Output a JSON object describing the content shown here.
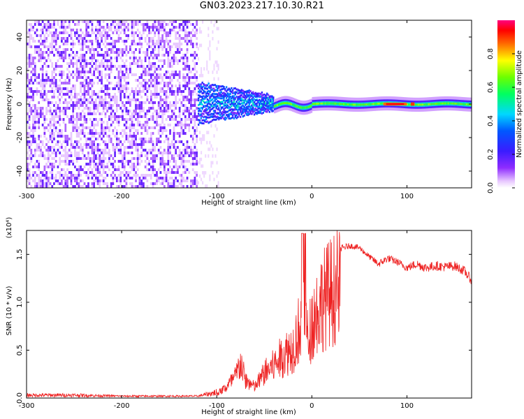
{
  "title": "GN03.2023.217.10.30.R21",
  "chart_data": [
    {
      "type": "heatmap",
      "xlabel": "Height of straight line (km)",
      "ylabel": "Frequency (Hz)",
      "xlim": [
        -300,
        168
      ],
      "ylim": [
        -50,
        50
      ],
      "xticks": [
        -300,
        -200,
        -100,
        0,
        100
      ],
      "yticks": [
        -40,
        -20,
        0,
        20,
        40
      ],
      "colorbar": {
        "label": "Normalized spectral amplitude",
        "range": [
          0.0,
          1.0
        ],
        "ticks": [
          "0.0",
          "0.2",
          "0.4",
          "0.6",
          "0.8"
        ],
        "colormap": "rainbow (white-violet-blue-cyan-green-yellow-red-magenta)"
      },
      "regions": [
        {
          "x_range": [
            -300,
            -120
          ],
          "freq_range": [
            -50,
            50
          ],
          "amplitude": 0.05
        },
        {
          "x_range": [
            -120,
            -40
          ],
          "freq_range": [
            -12,
            12
          ],
          "amplitude": 0.3
        },
        {
          "x_range": [
            -40,
            168
          ],
          "freq_range": [
            -4,
            4
          ],
          "center_freq": 0,
          "amplitude": 0.5
        },
        {
          "x_range": [
            75,
            100
          ],
          "freq_range": [
            -1,
            1
          ],
          "center_freq": 0,
          "amplitude": 1.0
        }
      ]
    },
    {
      "type": "line",
      "xlabel": "Height of straight line (km)",
      "ylabel": "SNR (10 * v/v)",
      "y_multiplier": "(x10⁴)",
      "xlim": [
        -300,
        168
      ],
      "ylim": [
        0.0,
        1.75
      ],
      "xticks": [
        -300,
        -200,
        -100,
        0,
        100
      ],
      "yticks": [
        "0.0",
        "0.5",
        "1.0",
        "1.5"
      ],
      "series": [
        {
          "color": "#ee2222",
          "x": [
            -300,
            -250,
            -200,
            -150,
            -120,
            -100,
            -90,
            -80,
            -75,
            -70,
            -60,
            -50,
            -40,
            -30,
            -20,
            -15,
            -10,
            -8,
            -5,
            0,
            5,
            10,
            20,
            30,
            40,
            50,
            60,
            70,
            80,
            90,
            100,
            110,
            120,
            130,
            140,
            150,
            160,
            168
          ],
          "y": [
            0.03,
            0.03,
            0.02,
            0.02,
            0.02,
            0.06,
            0.15,
            0.3,
            0.5,
            0.25,
            0.15,
            0.35,
            0.45,
            0.6,
            0.7,
            0.9,
            1.1,
            1.72,
            0.8,
            1.05,
            1.2,
            1.35,
            1.48,
            1.56,
            1.59,
            1.57,
            1.48,
            1.4,
            1.46,
            1.42,
            1.36,
            1.4,
            1.36,
            1.38,
            1.37,
            1.38,
            1.33,
            1.23
          ],
          "noise": [
            0.02,
            0.02,
            0.01,
            0.01,
            0.01,
            0.04,
            0.08,
            0.12,
            0.35,
            0.12,
            0.1,
            0.25,
            0.3,
            0.35,
            0.4,
            0.45,
            0.5,
            0.5,
            0.35,
            0.3,
            0.3,
            0.25,
            0.1,
            0.04,
            0.03,
            0.03,
            0.03,
            0.04,
            0.04,
            0.04,
            0.04,
            0.05,
            0.05,
            0.05,
            0.05,
            0.05,
            0.05,
            0.05
          ]
        }
      ]
    }
  ]
}
